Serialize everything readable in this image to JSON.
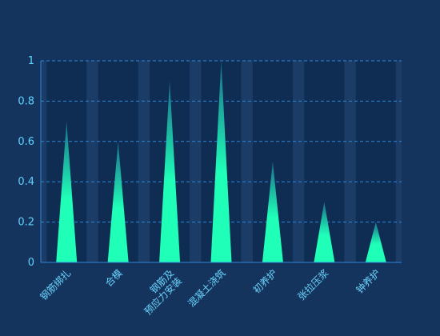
{
  "chart_data": {
    "type": "bar",
    "style": "pictorial-triangle",
    "categories": [
      "钢筋绑扎",
      "合模",
      "钢筋及\n预应力安装",
      "混凝土浇筑",
      "初养护",
      "张拉压浆",
      "钟养护"
    ],
    "values": [
      0.7,
      0.6,
      0.9,
      1.0,
      0.5,
      0.3,
      0.2
    ],
    "ylim": [
      0,
      1
    ],
    "yticks": [
      0,
      0.2,
      0.4,
      0.6,
      0.8,
      1
    ],
    "ytick_labels": [
      "0",
      "0.2",
      "0.4",
      "0.6",
      "0.8",
      "1"
    ],
    "grid": true,
    "title": "",
    "xlabel": "",
    "ylabel": "",
    "colors": {
      "background": "#15345d",
      "plot_band_dark": "#0f2d53",
      "plot_band_light": "#1b3c66",
      "bar_bottom": "#1fffb8",
      "bar_top": "#1a6a8a",
      "grid": "#2f86d8",
      "axis": "#2f86d8",
      "ytick_text": "#5fd2ff",
      "xtick_text": "#6ad6ff"
    }
  }
}
